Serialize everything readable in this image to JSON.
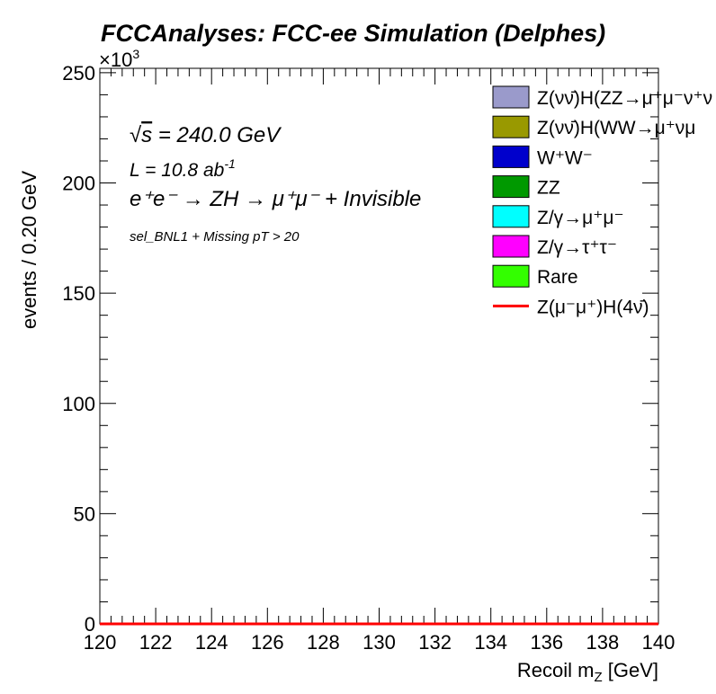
{
  "chart_data": {
    "type": "area",
    "title": "FCCAnalyses: FCC-ee Simulation (Delphes)",
    "xlabel_main": "Recoil m",
    "xlabel_sub": "Z",
    "xlabel_unit": " [GeV]",
    "ylabel": "events / 0.20 GeV",
    "yexponent": "×10",
    "yexponent_power": "3",
    "xlim": [
      120,
      140
    ],
    "ylim": [
      0,
      252
    ],
    "x_ticks": [
      "120",
      "122",
      "124",
      "126",
      "128",
      "130",
      "132",
      "134",
      "136",
      "138",
      "140"
    ],
    "x_tick_values": [
      120,
      122,
      124,
      126,
      128,
      130,
      132,
      134,
      136,
      138,
      140
    ],
    "y_ticks": [
      "0",
      "50",
      "100",
      "150",
      "200",
      "250"
    ],
    "y_tick_values": [
      0,
      50,
      100,
      150,
      200,
      250
    ],
    "annotations": {
      "sqrt_s_value": " = 240.0 GeV",
      "sqrt_symbol": "√",
      "sqrt_s_var": "s",
      "lumi_main": "L = 10.8 ab",
      "lumi_sup": "-1",
      "process": "e⁺e⁻ → ZH → μ⁺μ⁻ + Invisible",
      "selection": "sel_BNL1 + Missing pT > 20"
    },
    "legend_placement": "top-right",
    "series": [
      {
        "name": "Z(νν̄)H(ZZ→μ⁺μ⁻ν⁺ν",
        "kind": "fill",
        "color": "#9a9acb",
        "values": [
          0,
          0
        ]
      },
      {
        "name": "Z(νν̄)H(WW→μ⁺νμ",
        "kind": "fill",
        "color": "#999900",
        "values": [
          0,
          0
        ]
      },
      {
        "name": "W⁺W⁻",
        "kind": "fill",
        "color": "#0000cc",
        "values": [
          0,
          0
        ]
      },
      {
        "name": "ZZ",
        "kind": "fill",
        "color": "#009900",
        "values": [
          0,
          0
        ]
      },
      {
        "name": "Z/γ→μ⁺μ⁻",
        "kind": "fill",
        "color": "#00ffff",
        "values": [
          0,
          0
        ]
      },
      {
        "name": "Z/γ→τ⁺τ⁻",
        "kind": "fill",
        "color": "#ff00ff",
        "values": [
          0,
          0
        ]
      },
      {
        "name": "Rare",
        "kind": "fill",
        "color": "#33ff00",
        "values": [
          0,
          0
        ]
      },
      {
        "name": "Z(μ⁻μ⁺)H(4ν̄)",
        "kind": "line",
        "color": "#ff0000",
        "values": [
          0,
          0
        ]
      }
    ],
    "x": [
      120,
      140
    ]
  }
}
